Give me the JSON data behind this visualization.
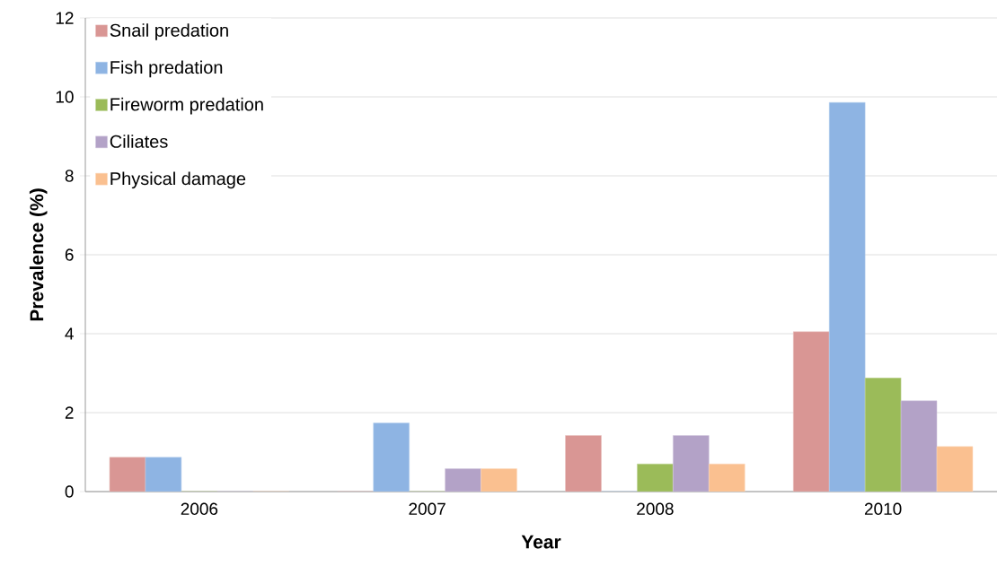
{
  "chart_data": {
    "type": "bar",
    "xlabel": "Year",
    "ylabel": "Prevalence (%)",
    "categories": [
      "2006",
      "2007",
      "2008",
      "2010"
    ],
    "series": [
      {
        "name": "Snail predation",
        "color": "#d99694",
        "values": [
          0.87,
          0,
          1.42,
          4.05
        ]
      },
      {
        "name": "Fish predation",
        "color": "#8eb4e3",
        "values": [
          0.87,
          1.74,
          0,
          9.86
        ]
      },
      {
        "name": "Fireworm predation",
        "color": "#9bbb59",
        "values": [
          0,
          0,
          0.7,
          2.88
        ]
      },
      {
        "name": "Ciliates",
        "color": "#b3a2c7",
        "values": [
          0,
          0.58,
          1.42,
          2.3
        ]
      },
      {
        "name": "Physical damage",
        "color": "#fac090",
        "values": [
          0,
          0.58,
          0.7,
          1.14
        ]
      }
    ],
    "ylim": [
      0,
      12
    ],
    "yticks": [
      0,
      2,
      4,
      6,
      8,
      10,
      12
    ],
    "grid": "y",
    "legend": "top left"
  }
}
